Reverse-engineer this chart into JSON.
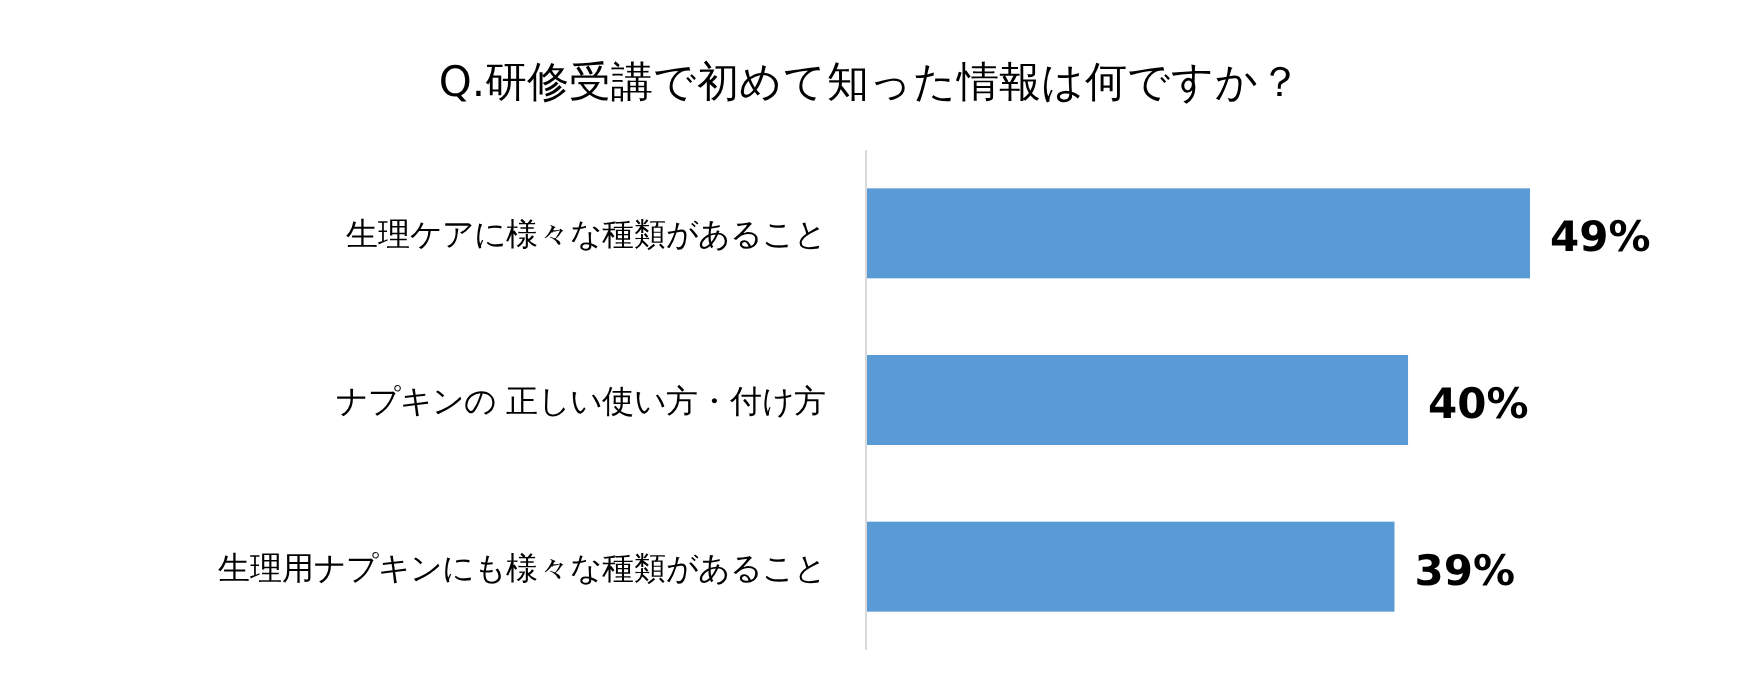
{
  "chart_data": {
    "type": "bar",
    "orientation": "horizontal",
    "title": "Q.研修受講で初めて知った情報は何ですか？",
    "categories": [
      "生理ケアに様々な種類があること",
      "ナプキンの 正しい使い方・付け方",
      "生理用ナプキンにも様々な種類があること"
    ],
    "values": [
      49,
      40,
      39
    ],
    "color": "#5b9bd5",
    "value_labels": [
      "49%",
      "40%",
      "39%"
    ]
  }
}
